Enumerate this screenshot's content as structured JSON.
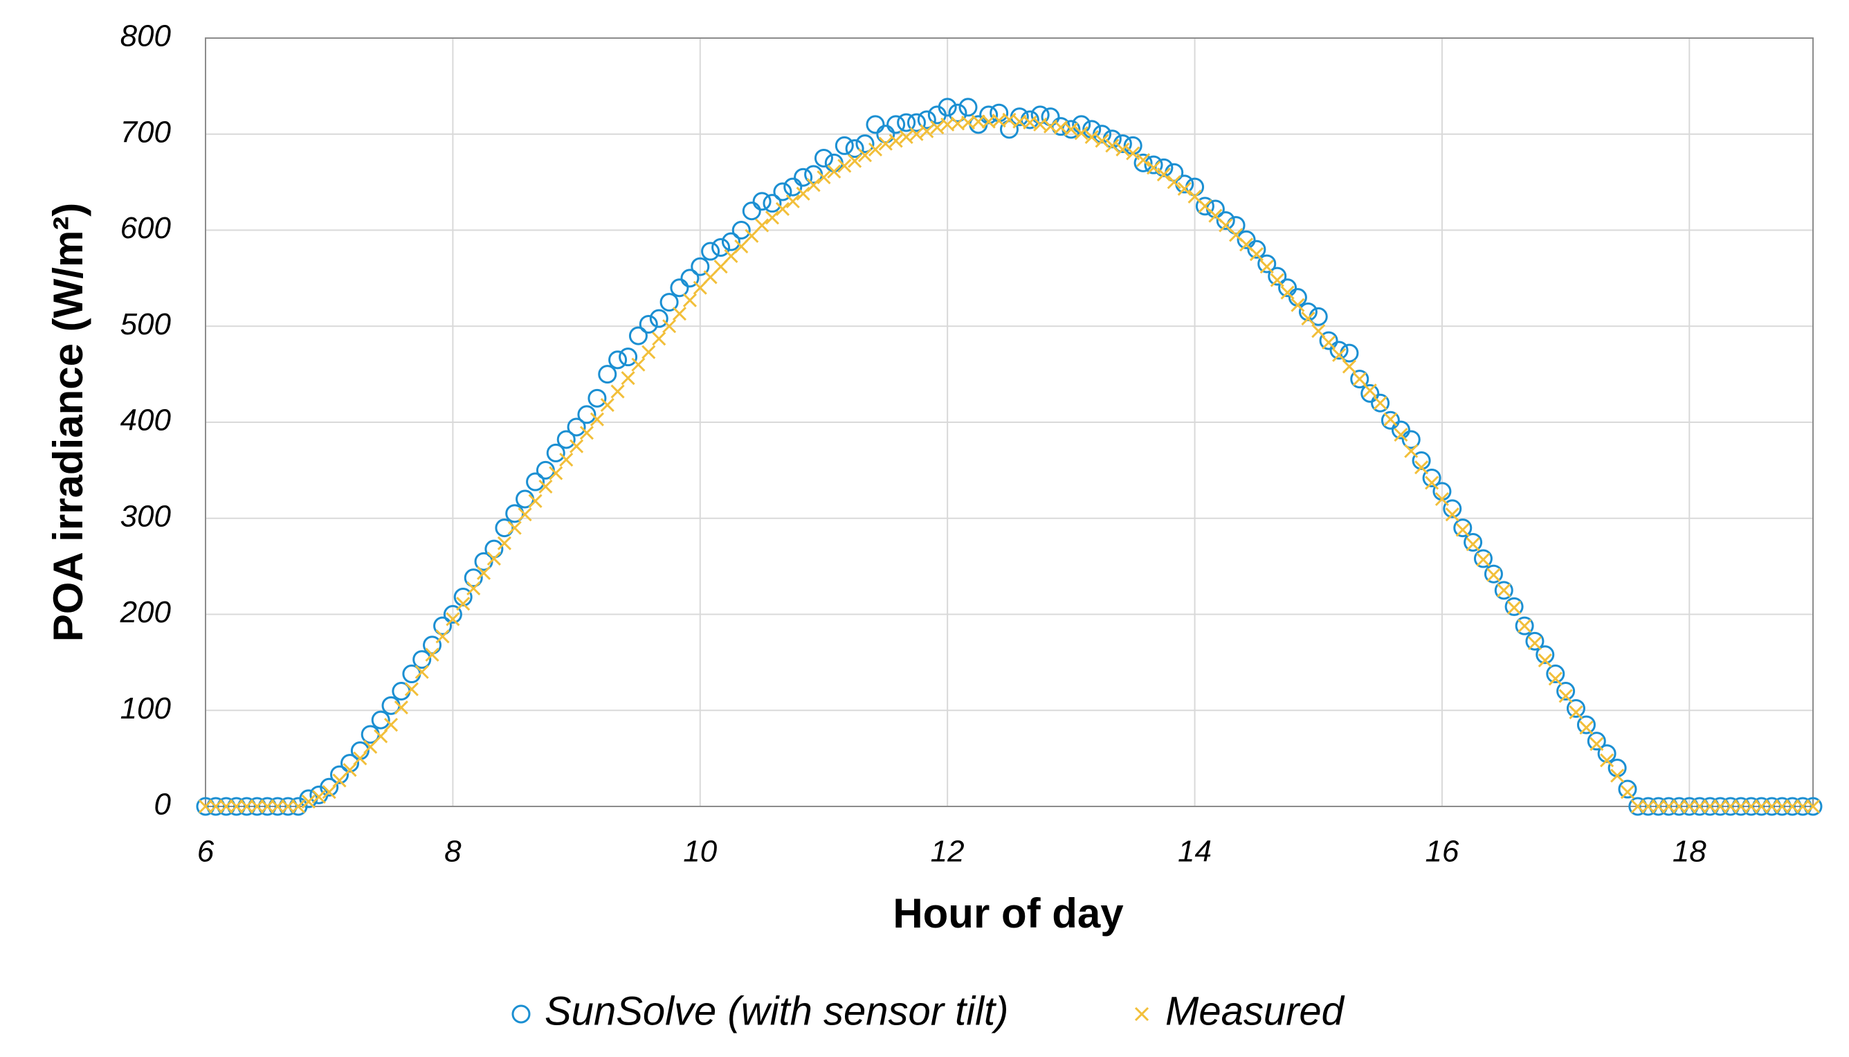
{
  "chart_data": {
    "type": "scatter",
    "xlabel": "Hour of day",
    "ylabel": "POA irradiance (W/m²)",
    "xlim": [
      6,
      19
    ],
    "xticks": [
      6,
      8,
      10,
      12,
      14,
      16,
      18
    ],
    "ylim": [
      0,
      800
    ],
    "yticks": [
      0,
      100,
      200,
      300,
      400,
      500,
      600,
      700,
      800
    ],
    "grid": true,
    "legend": "bottom",
    "x": [
      6,
      6.083,
      6.167,
      6.25,
      6.333,
      6.417,
      6.5,
      6.583,
      6.667,
      6.75,
      6.833,
      6.917,
      7,
      7.083,
      7.167,
      7.25,
      7.333,
      7.417,
      7.5,
      7.583,
      7.667,
      7.75,
      7.833,
      7.917,
      8,
      8.083,
      8.167,
      8.25,
      8.333,
      8.417,
      8.5,
      8.583,
      8.667,
      8.75,
      8.833,
      8.917,
      9,
      9.083,
      9.167,
      9.25,
      9.333,
      9.417,
      9.5,
      9.583,
      9.667,
      9.75,
      9.833,
      9.917,
      10,
      10.083,
      10.167,
      10.25,
      10.333,
      10.417,
      10.5,
      10.583,
      10.667,
      10.75,
      10.833,
      10.917,
      11,
      11.083,
      11.167,
      11.25,
      11.333,
      11.417,
      11.5,
      11.583,
      11.667,
      11.75,
      11.833,
      11.917,
      12,
      12.083,
      12.167,
      12.25,
      12.333,
      12.417,
      12.5,
      12.583,
      12.667,
      12.75,
      12.833,
      12.917,
      13,
      13.083,
      13.167,
      13.25,
      13.333,
      13.417,
      13.5,
      13.583,
      13.667,
      13.75,
      13.833,
      13.917,
      14,
      14.083,
      14.167,
      14.25,
      14.333,
      14.417,
      14.5,
      14.583,
      14.667,
      14.75,
      14.833,
      14.917,
      15,
      15.083,
      15.167,
      15.25,
      15.333,
      15.417,
      15.5,
      15.583,
      15.667,
      15.75,
      15.833,
      15.917,
      16,
      16.083,
      16.167,
      16.25,
      16.333,
      16.417,
      16.5,
      16.583,
      16.667,
      16.75,
      16.833,
      16.917,
      17,
      17.083,
      17.167,
      17.25,
      17.333,
      17.417,
      17.5,
      17.583,
      17.667,
      17.75,
      17.833,
      17.917,
      18,
      18.083,
      18.167,
      18.25,
      18.333,
      18.417,
      18.5,
      18.583,
      18.667,
      18.75,
      18.833,
      18.917,
      19
    ],
    "series": [
      {
        "name": "SunSolve (with sensor tilt)",
        "color": "#1b8fd2",
        "marker": "circle",
        "values": [
          0,
          0,
          0,
          0,
          0,
          0,
          0,
          0,
          0,
          0,
          8,
          12,
          20,
          33,
          45,
          58,
          75,
          90,
          105,
          120,
          138,
          153,
          168,
          188,
          200,
          218,
          238,
          255,
          268,
          290,
          305,
          320,
          338,
          350,
          368,
          382,
          395,
          408,
          425,
          450,
          465,
          468,
          490,
          502,
          508,
          525,
          540,
          550,
          562,
          578,
          582,
          588,
          600,
          620,
          630,
          628,
          640,
          645,
          655,
          658,
          675,
          670,
          688,
          685,
          690,
          710,
          700,
          710,
          712,
          712,
          715,
          720,
          728,
          722,
          728,
          710,
          720,
          722,
          705,
          718,
          715,
          720,
          718,
          708,
          705,
          710,
          705,
          700,
          695,
          690,
          688,
          670,
          668,
          665,
          660,
          648,
          645,
          625,
          622,
          610,
          605,
          590,
          580,
          565,
          552,
          540,
          530,
          515,
          510,
          485,
          475,
          472,
          445,
          430,
          420,
          402,
          392,
          382,
          360,
          342,
          328,
          310,
          290,
          275,
          258,
          242,
          225,
          208,
          188,
          172,
          158,
          138,
          120,
          102,
          85,
          68,
          55,
          40,
          18,
          0,
          0,
          0,
          0,
          0,
          0,
          0,
          0,
          0,
          0,
          0,
          0,
          0,
          0,
          0,
          0,
          0,
          0
        ]
      },
      {
        "name": "Measured",
        "color": "#f2bf3a",
        "marker": "x",
        "values": [
          0,
          0,
          0,
          0,
          0,
          0,
          0,
          0,
          0,
          0,
          5,
          10,
          15,
          27,
          38,
          50,
          62,
          73,
          85,
          103,
          122,
          140,
          158,
          177,
          195,
          211,
          227,
          243,
          258,
          274,
          290,
          304,
          318,
          333,
          347,
          361,
          375,
          389,
          403,
          418,
          432,
          446,
          460,
          473,
          487,
          500,
          513,
          527,
          540,
          551,
          562,
          573,
          583,
          594,
          605,
          613,
          622,
          630,
          638,
          647,
          655,
          661,
          667,
          672,
          678,
          684,
          690,
          693,
          697,
          700,
          703,
          707,
          710,
          711,
          712,
          713,
          713,
          714,
          715,
          713,
          712,
          710,
          708,
          707,
          705,
          701,
          697,
          693,
          688,
          684,
          680,
          673,
          665,
          658,
          650,
          643,
          635,
          625,
          615,
          605,
          595,
          585,
          575,
          562,
          548,
          535,
          522,
          508,
          495,
          483,
          470,
          458,
          445,
          433,
          420,
          403,
          387,
          370,
          353,
          337,
          320,
          304,
          288,
          273,
          257,
          241,
          225,
          207,
          188,
          170,
          152,
          133,
          115,
          98,
          82,
          65,
          48,
          32,
          15,
          0,
          0,
          0,
          0,
          0,
          0,
          0,
          0,
          0,
          0,
          0,
          0,
          0,
          0,
          0,
          0,
          0,
          0
        ]
      }
    ]
  }
}
